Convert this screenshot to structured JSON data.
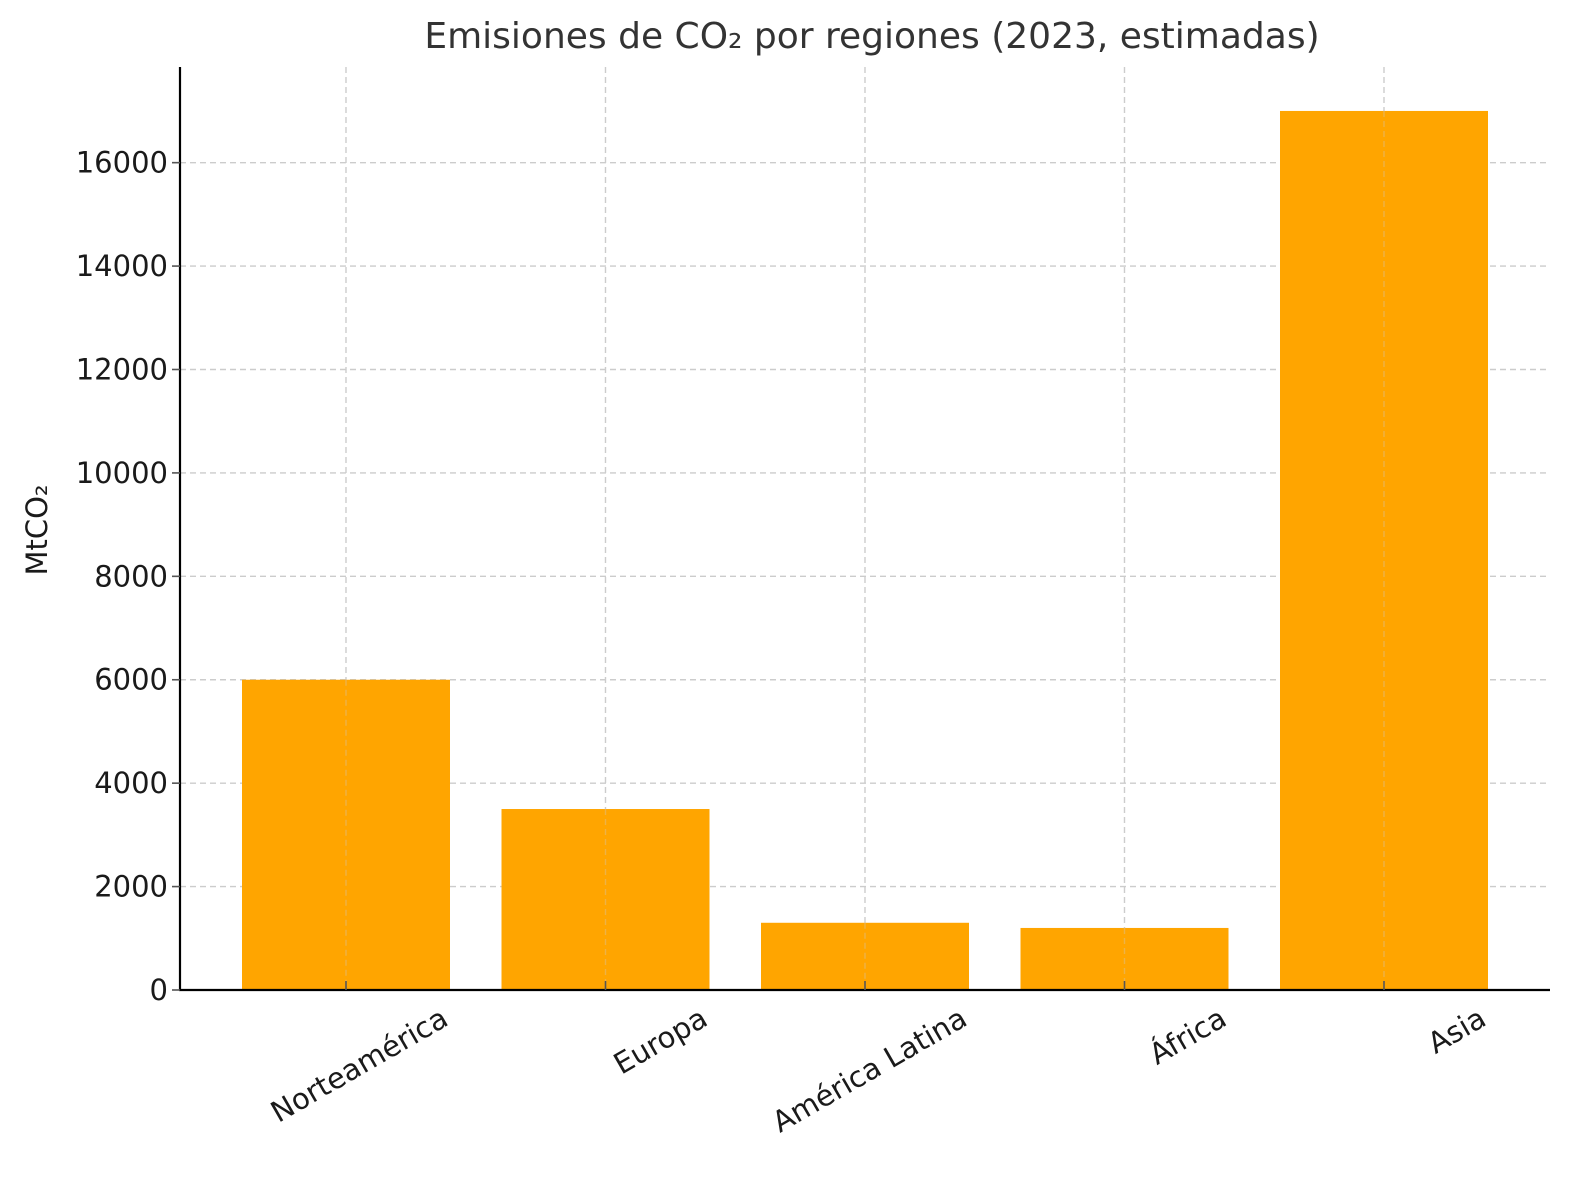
{
  "chart_data": {
    "type": "bar",
    "title": "Emisiones de CO₂ por regiones (2023, estimadas)",
    "xlabel": "",
    "ylabel": "MtCO₂",
    "categories": [
      "Norteamérica",
      "Europa",
      "América Latina",
      "África",
      "Asia"
    ],
    "values": [
      6000,
      3500,
      1300,
      1200,
      17000
    ],
    "ylim": [
      0,
      17850
    ],
    "yticks": [
      0,
      2000,
      4000,
      6000,
      8000,
      10000,
      12000,
      14000,
      16000
    ],
    "grid": true,
    "bar_color": "#FFA500"
  }
}
